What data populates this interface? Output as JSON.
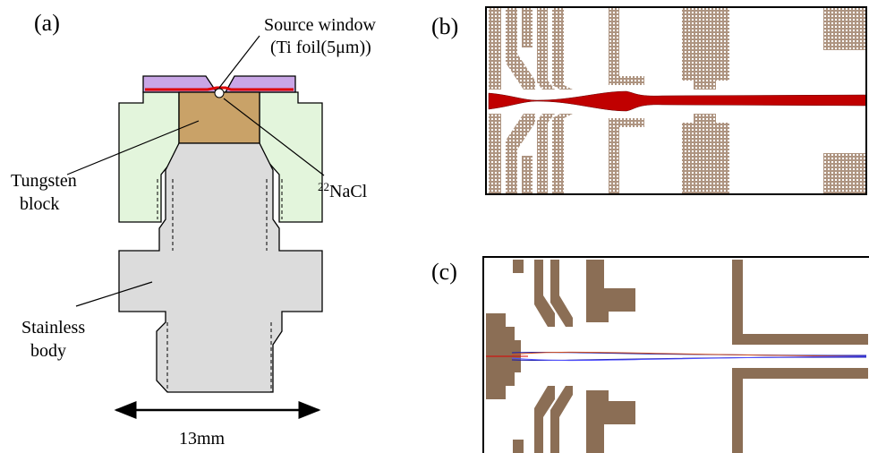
{
  "panels": {
    "a": {
      "label": "(a)",
      "source_window": [
        "Source window",
        "(Ti foil(5μm))"
      ],
      "tungsten": [
        "Tungsten",
        "block"
      ],
      "nacl": {
        "mass": "22",
        "name": "NaCl"
      },
      "stainless": [
        "Stainless",
        "body"
      ],
      "dimension": "13mm"
    },
    "b": {
      "label": "(b)"
    },
    "c": {
      "label": "(c)"
    }
  }
}
